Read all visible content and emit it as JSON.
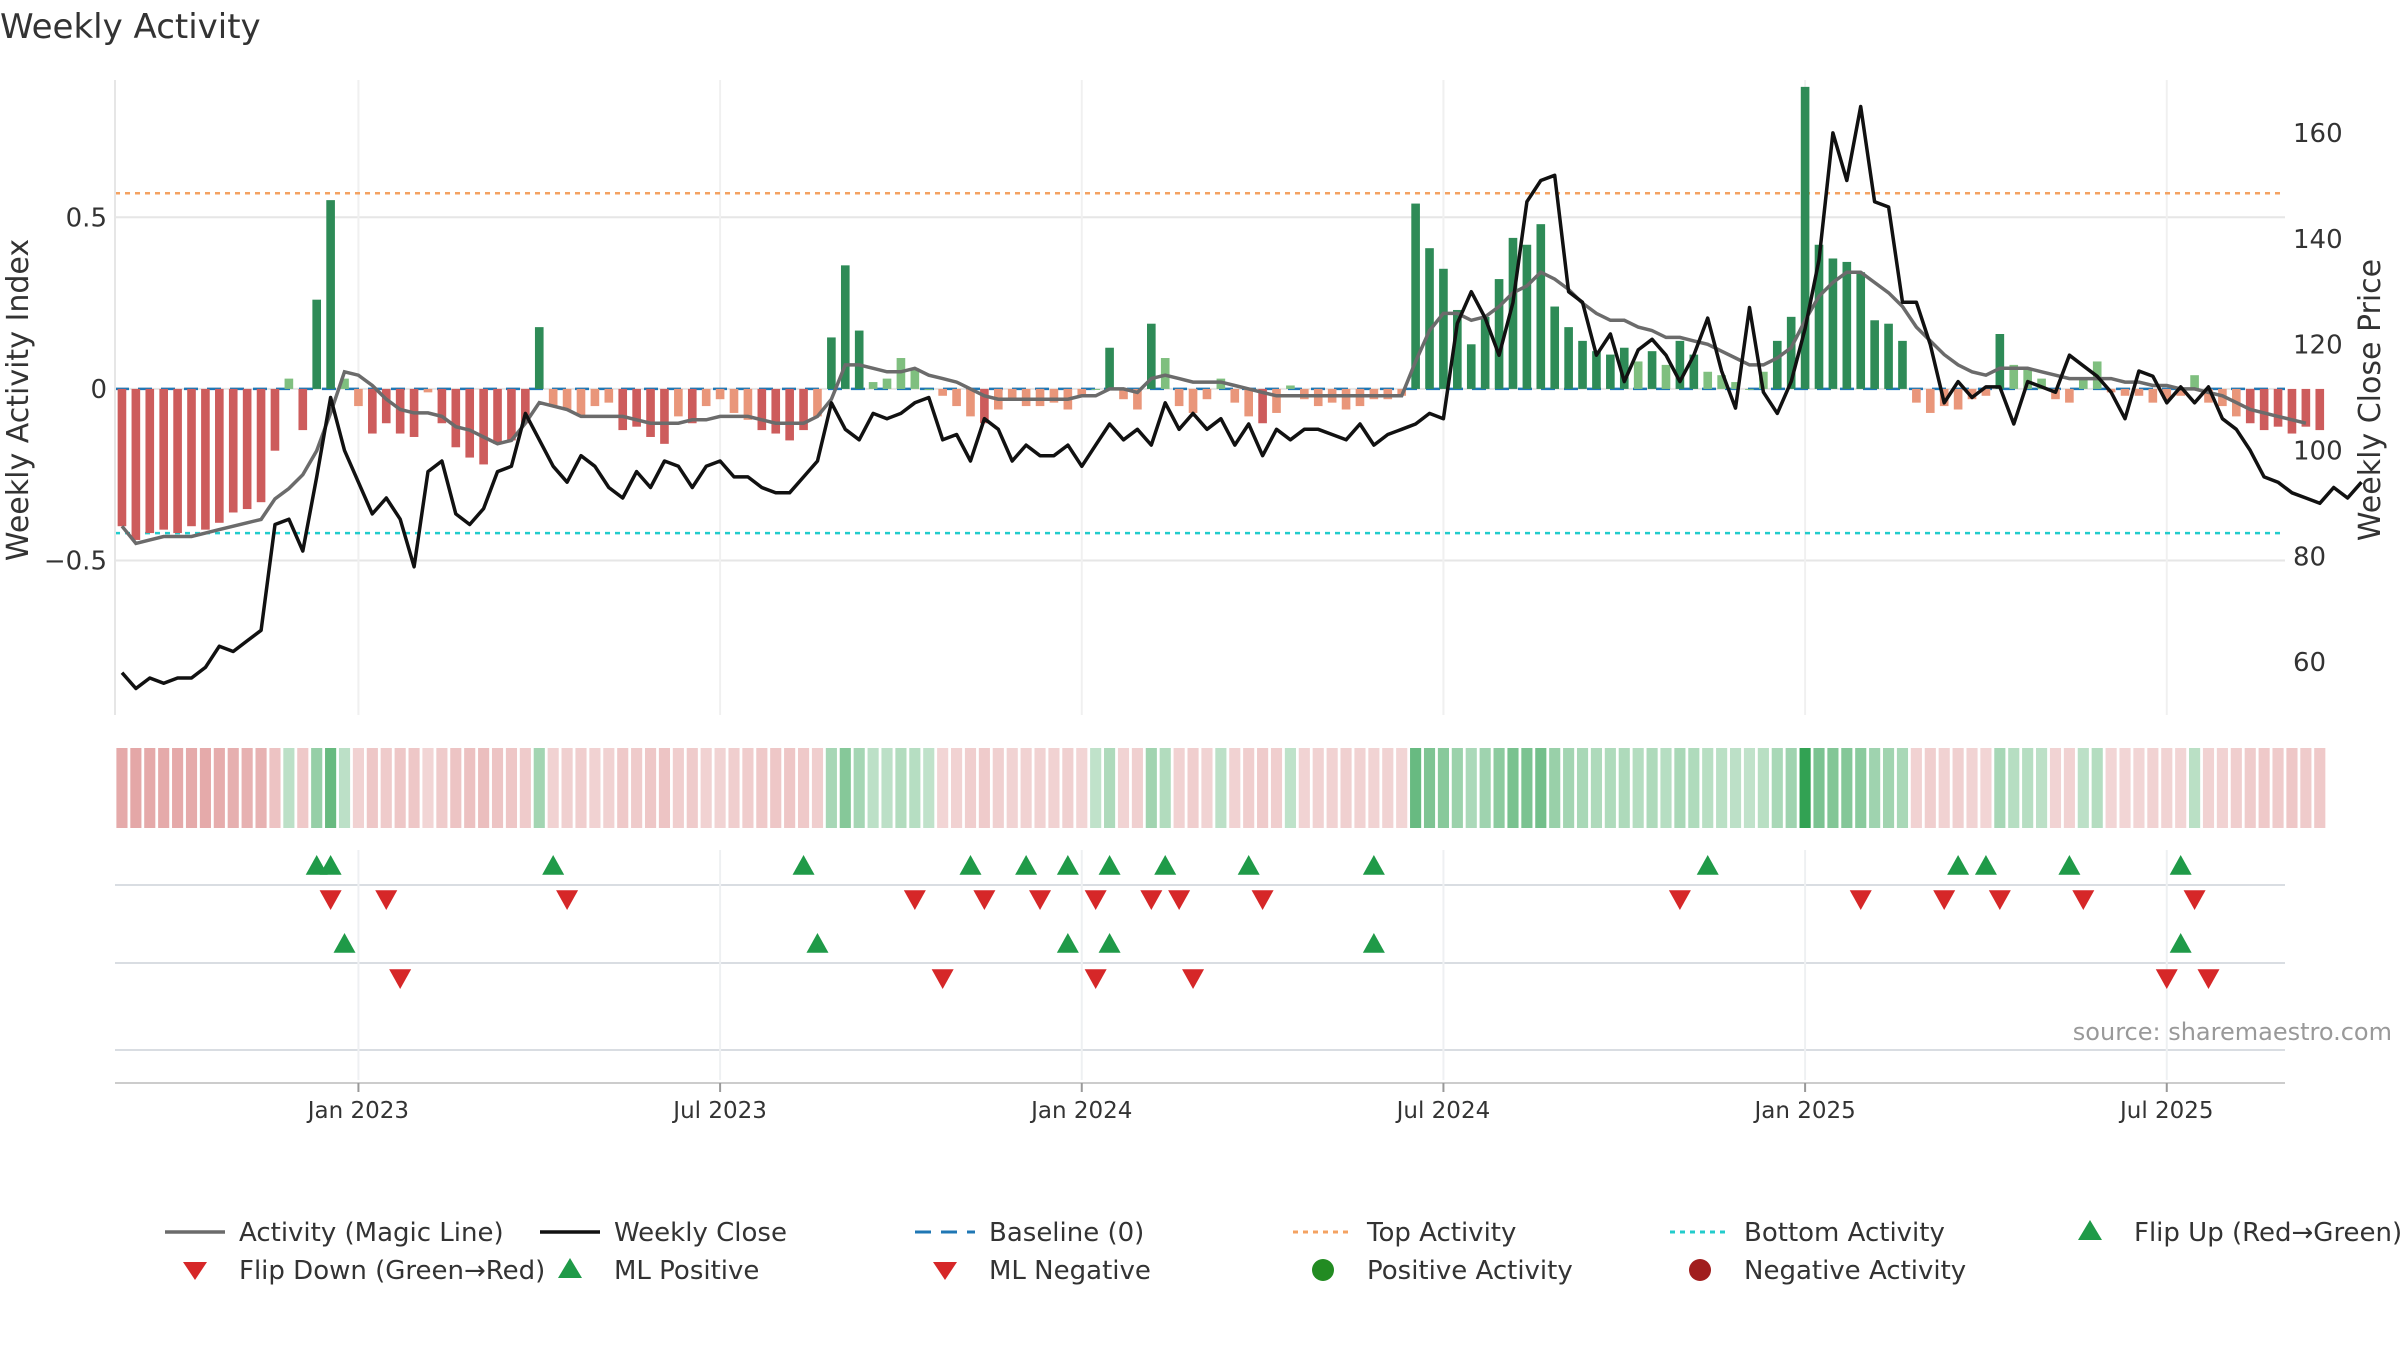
{
  "chart_data": {
    "type": "bar",
    "title": "Weekly Activity",
    "ylabel": "Weekly Activity Index",
    "y2label": "Weekly Close Price",
    "source": "source: sharemaestro.com",
    "ylim": [
      -0.95,
      0.9
    ],
    "y2lim": [
      50,
      170
    ],
    "y_ticks": [
      -0.5,
      0,
      0.5
    ],
    "y_tick_labels": [
      "−0.5",
      "0",
      "0.5"
    ],
    "y2_ticks": [
      60,
      80,
      100,
      120,
      140,
      160
    ],
    "top_activity": 0.57,
    "bottom_activity": -0.42,
    "x_ticks": [
      {
        "week": 17,
        "label": "Jan 2023"
      },
      {
        "week": 43,
        "label": "Jul 2023"
      },
      {
        "week": 69,
        "label": "Jan 2024"
      },
      {
        "week": 95,
        "label": "Jul 2024"
      },
      {
        "week": 121,
        "label": "Jan 2025"
      },
      {
        "week": 147,
        "label": "Jul 2025"
      }
    ],
    "n_weeks": 156,
    "activity": [
      -0.4,
      -0.44,
      -0.42,
      -0.41,
      -0.42,
      -0.4,
      -0.41,
      -0.39,
      -0.36,
      -0.35,
      -0.33,
      -0.18,
      0.03,
      -0.12,
      0.26,
      0.55,
      0.03,
      -0.05,
      -0.13,
      -0.1,
      -0.13,
      -0.14,
      -0.01,
      -0.1,
      -0.17,
      -0.2,
      -0.22,
      -0.16,
      -0.15,
      -0.1,
      0.18,
      -0.05,
      -0.06,
      -0.08,
      -0.05,
      -0.04,
      -0.12,
      -0.11,
      -0.14,
      -0.16,
      -0.08,
      -0.1,
      -0.05,
      -0.03,
      -0.07,
      -0.09,
      -0.12,
      -0.13,
      -0.15,
      -0.12,
      -0.08,
      0.15,
      0.36,
      0.17,
      0.02,
      0.03,
      0.09,
      0.06,
      0.0,
      -0.02,
      -0.05,
      -0.08,
      -0.1,
      -0.06,
      -0.03,
      -0.05,
      -0.05,
      -0.04,
      -0.06,
      -0.02,
      0.0,
      0.12,
      -0.03,
      -0.06,
      0.19,
      0.09,
      -0.05,
      -0.07,
      -0.03,
      0.03,
      -0.04,
      -0.08,
      -0.1,
      -0.07,
      0.01,
      -0.03,
      -0.05,
      -0.04,
      -0.06,
      -0.05,
      -0.03,
      -0.03,
      -0.02,
      0.54,
      0.41,
      0.35,
      0.23,
      0.13,
      0.21,
      0.32,
      0.44,
      0.42,
      0.48,
      0.24,
      0.18,
      0.14,
      0.11,
      0.1,
      0.12,
      0.08,
      0.11,
      0.07,
      0.14,
      0.1,
      0.05,
      0.04,
      0.02,
      0.0,
      0.05,
      0.14,
      0.21,
      0.88,
      0.42,
      0.38,
      0.37,
      0.34,
      0.2,
      0.19,
      0.14,
      -0.04,
      -0.07,
      -0.05,
      -0.06,
      -0.03,
      -0.02,
      0.16,
      0.07,
      0.06,
      0.03,
      -0.03,
      -0.04,
      0.03,
      0.08,
      -0.01,
      -0.02,
      -0.02,
      -0.04,
      -0.03,
      -0.02,
      0.04,
      -0.04,
      -0.05,
      -0.08,
      -0.1,
      -0.12,
      -0.11,
      -0.13,
      -0.11,
      -0.12
    ],
    "magic_line": [
      -0.4,
      -0.45,
      -0.44,
      -0.43,
      -0.43,
      -0.43,
      -0.42,
      -0.41,
      -0.4,
      -0.39,
      -0.38,
      -0.32,
      -0.29,
      -0.25,
      -0.18,
      -0.07,
      0.05,
      0.04,
      0.01,
      -0.03,
      -0.06,
      -0.07,
      -0.07,
      -0.08,
      -0.11,
      -0.12,
      -0.14,
      -0.16,
      -0.15,
      -0.1,
      -0.04,
      -0.05,
      -0.06,
      -0.08,
      -0.08,
      -0.08,
      -0.08,
      -0.09,
      -0.1,
      -0.1,
      -0.1,
      -0.09,
      -0.09,
      -0.08,
      -0.08,
      -0.08,
      -0.09,
      -0.1,
      -0.1,
      -0.1,
      -0.08,
      -0.03,
      0.07,
      0.07,
      0.06,
      0.05,
      0.05,
      0.06,
      0.04,
      0.03,
      0.02,
      0.0,
      -0.02,
      -0.03,
      -0.03,
      -0.03,
      -0.03,
      -0.03,
      -0.03,
      -0.02,
      -0.02,
      0.0,
      0.0,
      -0.01,
      0.03,
      0.04,
      0.03,
      0.02,
      0.02,
      0.02,
      0.01,
      0.0,
      -0.01,
      -0.02,
      -0.02,
      -0.02,
      -0.02,
      -0.02,
      -0.02,
      -0.02,
      -0.02,
      -0.02,
      -0.02,
      0.08,
      0.17,
      0.22,
      0.22,
      0.2,
      0.21,
      0.24,
      0.28,
      0.3,
      0.34,
      0.32,
      0.29,
      0.25,
      0.22,
      0.2,
      0.2,
      0.18,
      0.17,
      0.15,
      0.15,
      0.14,
      0.13,
      0.11,
      0.09,
      0.07,
      0.07,
      0.09,
      0.12,
      0.2,
      0.27,
      0.31,
      0.34,
      0.34,
      0.31,
      0.28,
      0.24,
      0.18,
      0.14,
      0.1,
      0.07,
      0.05,
      0.04,
      0.06,
      0.06,
      0.06,
      0.05,
      0.04,
      0.03,
      0.03,
      0.03,
      0.03,
      0.02,
      0.02,
      0.01,
      0.01,
      0.0,
      0.0,
      -0.01,
      -0.02,
      -0.04,
      -0.06,
      -0.07,
      -0.08,
      -0.09,
      -0.1
    ],
    "weekly_close": [
      58,
      55,
      57,
      56,
      57,
      57,
      59,
      63,
      62,
      64,
      66,
      86,
      87,
      81,
      95,
      110,
      100,
      94,
      88,
      91,
      87,
      78,
      96,
      98,
      88,
      86,
      89,
      96,
      97,
      107,
      102,
      97,
      94,
      99,
      97,
      93,
      91,
      96,
      93,
      98,
      97,
      93,
      97,
      98,
      95,
      95,
      93,
      92,
      92,
      95,
      98,
      109,
      104,
      102,
      107,
      106,
      107,
      109,
      110,
      102,
      103,
      98,
      106,
      104,
      98,
      101,
      99,
      99,
      101,
      97,
      101,
      105,
      102,
      104,
      101,
      109,
      104,
      107,
      104,
      106,
      101,
      105,
      99,
      104,
      102,
      104,
      104,
      103,
      102,
      105,
      101,
      103,
      104,
      105,
      107,
      106,
      124,
      130,
      125,
      118,
      128,
      147,
      151,
      152,
      130,
      128,
      118,
      122,
      113,
      119,
      121,
      118,
      113,
      118,
      125,
      115,
      108,
      127,
      111,
      107,
      113,
      123,
      136,
      160,
      151,
      165,
      147,
      146,
      128,
      128,
      120,
      109,
      113,
      110,
      112,
      112,
      105,
      113,
      112,
      111,
      118,
      116,
      114,
      111,
      106,
      115,
      114,
      109,
      112,
      109,
      112,
      106,
      104,
      100,
      95,
      94,
      92,
      91,
      90,
      93,
      91,
      94
    ],
    "flip_up": [
      14,
      15,
      31,
      49,
      61,
      65,
      68,
      71,
      75,
      81,
      90,
      114,
      132,
      134,
      140,
      148
    ],
    "flip_down": [
      15,
      19,
      32,
      57,
      62,
      66,
      70,
      74,
      76,
      82,
      112,
      125,
      131,
      135,
      141,
      149
    ],
    "ml_positive": [
      16,
      50,
      68,
      71,
      90,
      148
    ],
    "ml_negative": [
      20,
      59,
      70,
      77,
      147,
      150
    ]
  },
  "legend": [
    {
      "label": "Activity (Magic Line)",
      "symbol": "line-gray"
    },
    {
      "label": "Weekly Close",
      "symbol": "line-black"
    },
    {
      "label": "Baseline (0)",
      "symbol": "dash-blue"
    },
    {
      "label": "Top Activity",
      "symbol": "dot-orange"
    },
    {
      "label": "Bottom Activity",
      "symbol": "dot-cyan"
    },
    {
      "label": "Flip Up (Red→Green)",
      "symbol": "triangle-up-green"
    },
    {
      "label": "Flip Down (Green→Red)",
      "symbol": "triangle-down-red"
    },
    {
      "label": "ML Positive",
      "symbol": "triangle-up-green"
    },
    {
      "label": "ML Negative",
      "symbol": "triangle-down-red"
    },
    {
      "label": "Positive Activity",
      "symbol": "circle-green"
    },
    {
      "label": "Negative Activity",
      "symbol": "circle-darkred"
    }
  ],
  "colors": {
    "pos_strong": "#2e8b57",
    "pos_light": "#7fbf7f",
    "neg_strong": "#cd5c5c",
    "neg_light": "#e9967a",
    "magic_line": "#6b6b6b",
    "close": "#111111",
    "baseline": "#1f77b4",
    "top": "#f4a261",
    "bottom": "#22cccc",
    "marker_green": "#1f9a48",
    "marker_red": "#d62728"
  }
}
